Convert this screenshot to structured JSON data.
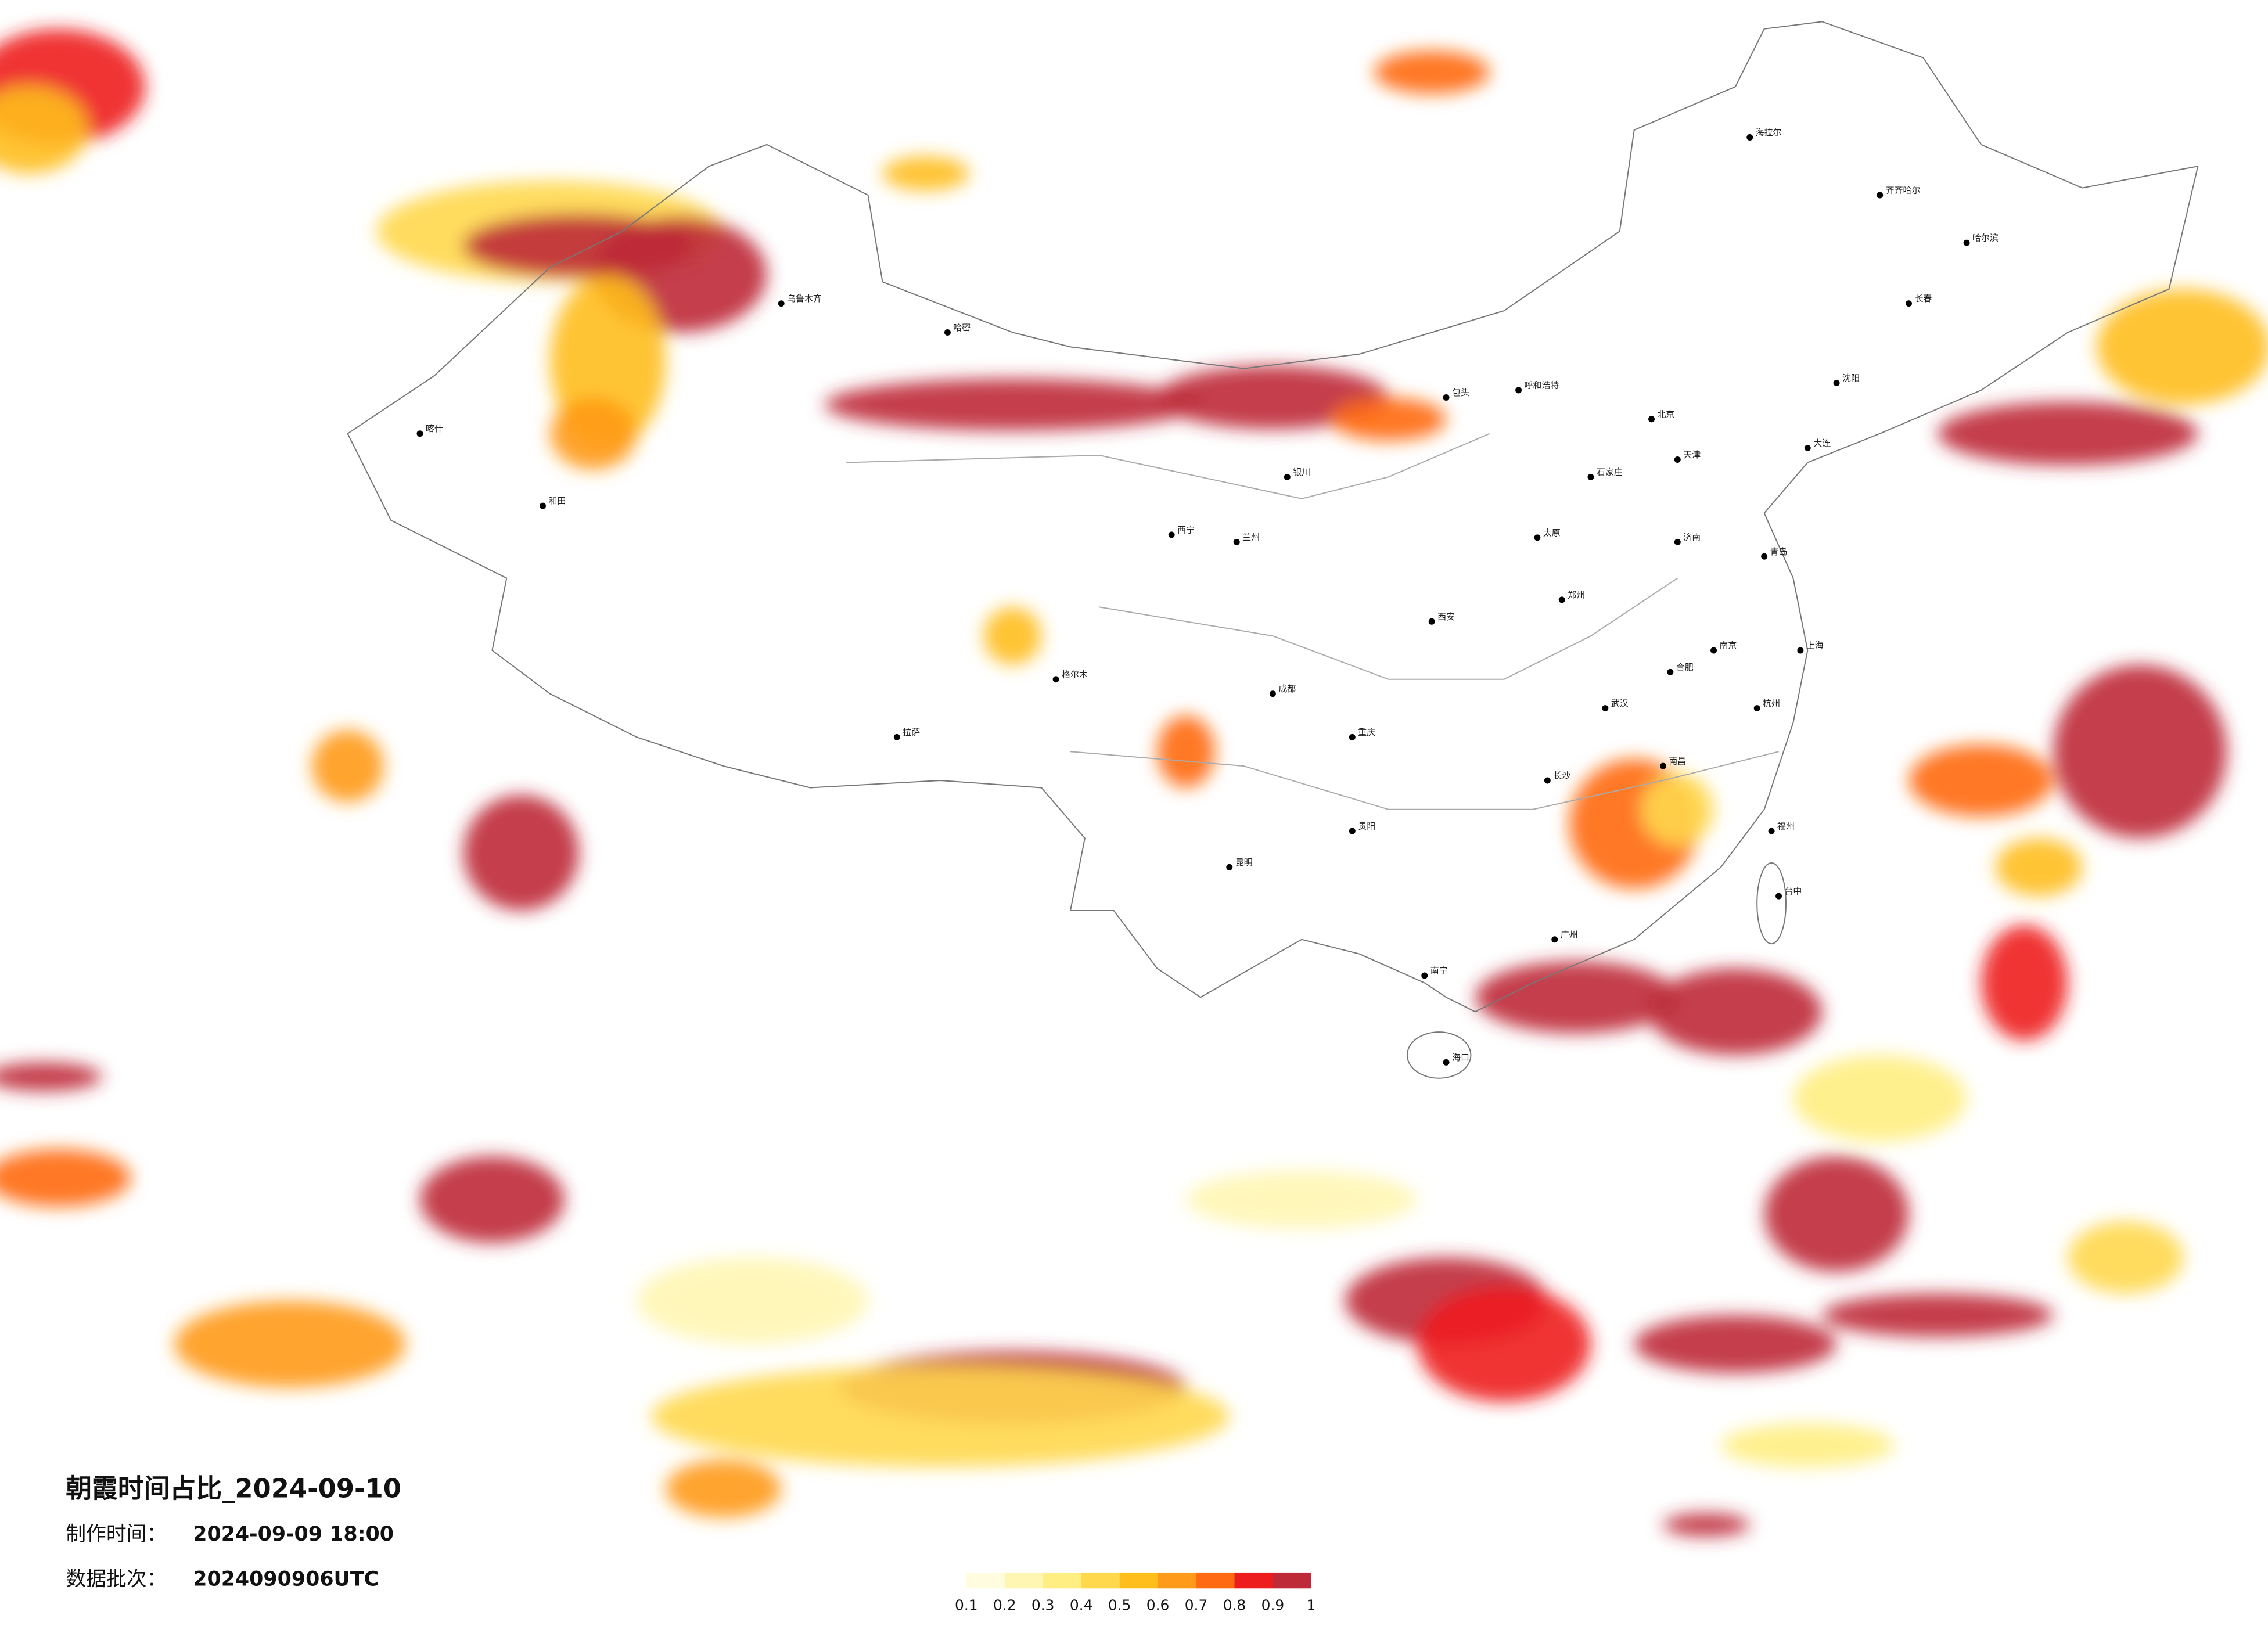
{
  "map": {
    "title": "朝霞时间占比_2024-09-10",
    "made_label": "制作时间：",
    "made_value": "2024-09-09 18:00",
    "batch_label": "数据批次：",
    "batch_value": "2024090906UTC",
    "legend": {
      "colors": [
        "#fffce0",
        "#fff6b3",
        "#ffee82",
        "#ffd84c",
        "#ffbe1c",
        "#ff9a1a",
        "#ff6a12",
        "#ee1d1d",
        "#be2a38"
      ],
      "ticks": [
        0.1,
        0.2,
        0.3,
        0.4,
        0.5,
        0.6,
        0.7,
        0.8,
        0.9,
        1
      ]
    },
    "cities": [
      "北京",
      "天津",
      "石家庄",
      "太原",
      "呼和浩特",
      "包头",
      "沈阳",
      "长春",
      "哈尔滨",
      "济南",
      "郑州",
      "西安",
      "兰州",
      "西宁",
      "银川",
      "乌鲁木齐",
      "拉萨",
      "成都",
      "重庆",
      "贵阳",
      "昆明",
      "南宁",
      "广州",
      "长沙",
      "武汉",
      "南昌",
      "杭州",
      "上海",
      "南京",
      "合肥",
      "福州",
      "海口",
      "台中",
      "喀什",
      "和田",
      "哈密",
      "格尔木",
      "大连",
      "青岛",
      "齐齐哈尔",
      "海拉尔"
    ]
  }
}
